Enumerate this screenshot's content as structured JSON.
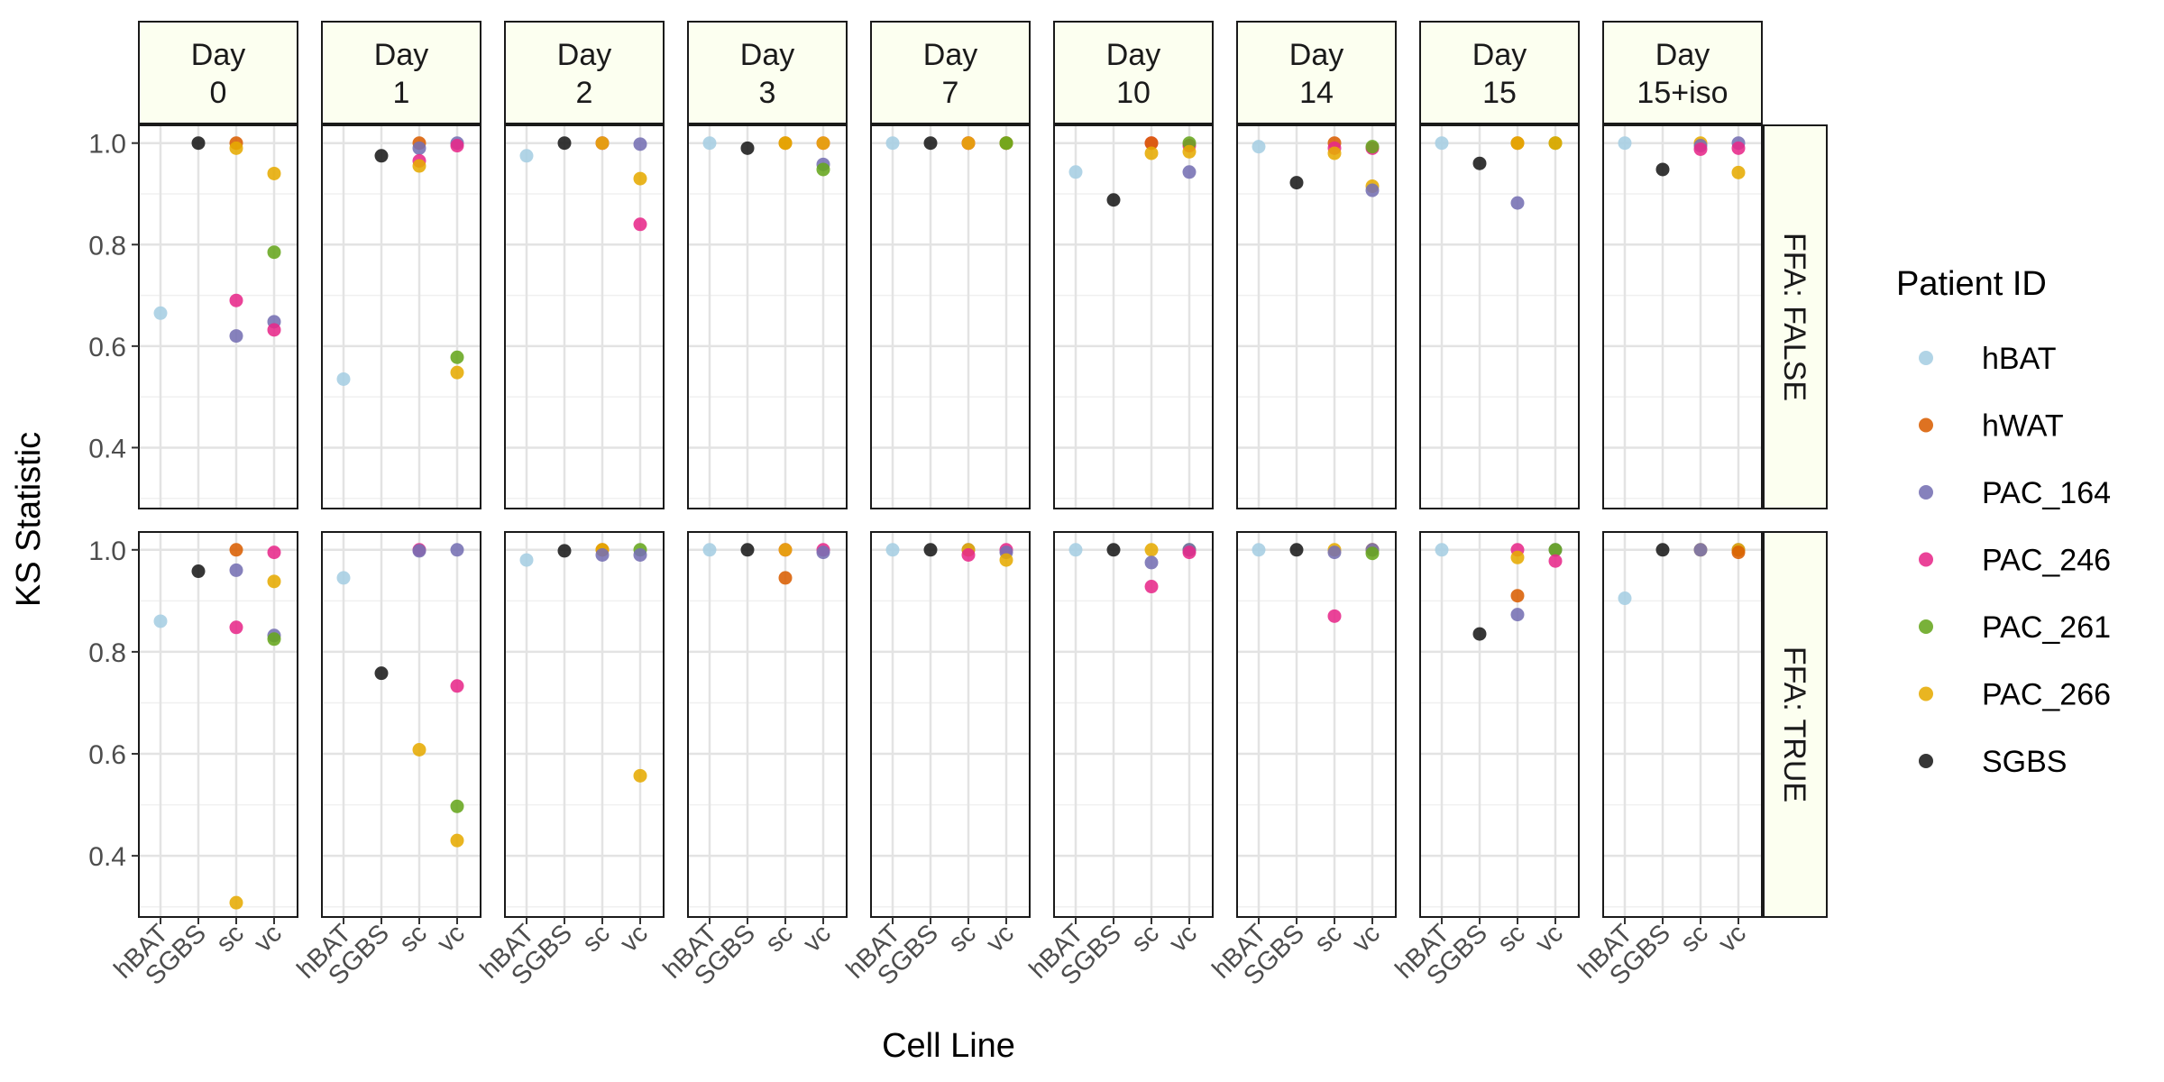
{
  "chart_data": {
    "type": "scatter",
    "xlabel": "Cell Line",
    "ylabel": "KS Statistic",
    "x_categories": [
      "hBAT",
      "SGBS",
      "sc",
      "vc"
    ],
    "y_ticks": [
      0.4,
      0.6,
      0.8,
      1.0
    ],
    "y_tick_labels": [
      "0.4",
      "0.6",
      "0.8",
      "1.0"
    ],
    "ylim": [
      0.28,
      1.035
    ],
    "grid": true,
    "legend": {
      "title": "Patient ID",
      "position": "right",
      "entries": [
        {
          "name": "hBAT",
          "color": "#a6cee3"
        },
        {
          "name": "hWAT",
          "color": "#d95f02"
        },
        {
          "name": "PAC_164",
          "color": "#7570b3"
        },
        {
          "name": "PAC_246",
          "color": "#e7298a"
        },
        {
          "name": "PAC_261",
          "color": "#66a61e"
        },
        {
          "name": "PAC_266",
          "color": "#e6ab02"
        },
        {
          "name": "SGBS",
          "color": "#1a1a1a"
        }
      ]
    },
    "columns": [
      {
        "line1": "Day",
        "line2": "0"
      },
      {
        "line1": "Day",
        "line2": "1"
      },
      {
        "line1": "Day",
        "line2": "2"
      },
      {
        "line1": "Day",
        "line2": "3"
      },
      {
        "line1": "Day",
        "line2": "7"
      },
      {
        "line1": "Day",
        "line2": "10"
      },
      {
        "line1": "Day",
        "line2": "14"
      },
      {
        "line1": "Day",
        "line2": "15"
      },
      {
        "line1": "Day",
        "line2": "15+iso"
      }
    ],
    "rows": [
      "FFA: FALSE",
      "FFA: TRUE"
    ],
    "panels": [
      [
        [
          [
            0,
            "hBAT",
            0.665
          ],
          [
            1,
            "SGBS",
            1.0
          ],
          [
            2,
            "hWAT",
            1.0
          ],
          [
            2,
            "PAC_266",
            0.99
          ],
          [
            2,
            "PAC_246",
            0.69
          ],
          [
            2,
            "PAC_164",
            0.62
          ],
          [
            3,
            "PAC_266",
            0.94
          ],
          [
            3,
            "PAC_261",
            0.785
          ],
          [
            3,
            "PAC_164",
            0.648
          ],
          [
            3,
            "PAC_246",
            0.632
          ]
        ],
        [
          [
            0,
            "hBAT",
            0.535
          ],
          [
            1,
            "SGBS",
            0.975
          ],
          [
            2,
            "hWAT",
            1.0
          ],
          [
            2,
            "PAC_164",
            0.99
          ],
          [
            2,
            "PAC_246",
            0.965
          ],
          [
            2,
            "PAC_266",
            0.955
          ],
          [
            3,
            "PAC_164",
            1.0
          ],
          [
            3,
            "PAC_246",
            0.995
          ],
          [
            3,
            "PAC_261",
            0.578
          ],
          [
            3,
            "PAC_266",
            0.548
          ]
        ],
        [
          [
            0,
            "hBAT",
            0.975
          ],
          [
            1,
            "SGBS",
            1.0
          ],
          [
            2,
            "PAC_164",
            1.0
          ],
          [
            2,
            "PAC_246",
            1.0
          ],
          [
            2,
            "PAC_266",
            1.0
          ],
          [
            3,
            "PAC_164",
            0.998
          ],
          [
            3,
            "PAC_266",
            0.93
          ],
          [
            3,
            "PAC_246",
            0.84
          ]
        ],
        [
          [
            0,
            "hBAT",
            1.0
          ],
          [
            1,
            "SGBS",
            0.99
          ],
          [
            2,
            "hWAT",
            1.0
          ],
          [
            2,
            "PAC_266",
            1.0
          ],
          [
            3,
            "PAC_246",
            1.0
          ],
          [
            3,
            "PAC_266",
            1.0
          ],
          [
            3,
            "PAC_164",
            0.958
          ],
          [
            3,
            "PAC_261",
            0.948
          ]
        ],
        [
          [
            0,
            "hBAT",
            1.0
          ],
          [
            1,
            "SGBS",
            1.0
          ],
          [
            2,
            "hWAT",
            1.0
          ],
          [
            2,
            "PAC_246",
            1.0
          ],
          [
            2,
            "PAC_266",
            1.0
          ],
          [
            3,
            "PAC_246",
            1.0
          ],
          [
            3,
            "PAC_164",
            1.0
          ],
          [
            3,
            "PAC_266",
            1.0
          ],
          [
            3,
            "PAC_261",
            1.0
          ]
        ],
        [
          [
            0,
            "hBAT",
            0.943
          ],
          [
            1,
            "SGBS",
            0.888
          ],
          [
            2,
            "PAC_246",
            1.0
          ],
          [
            2,
            "hWAT",
            1.0
          ],
          [
            2,
            "PAC_266",
            0.98
          ],
          [
            3,
            "PAC_246",
            0.995
          ],
          [
            3,
            "PAC_261",
            1.0
          ],
          [
            3,
            "PAC_266",
            0.983
          ],
          [
            3,
            "PAC_164",
            0.943
          ]
        ],
        [
          [
            0,
            "hBAT",
            0.993
          ],
          [
            1,
            "SGBS",
            0.922
          ],
          [
            2,
            "hWAT",
            1.0
          ],
          [
            2,
            "PAC_246",
            0.99
          ],
          [
            2,
            "PAC_266",
            0.98
          ],
          [
            3,
            "PAC_246",
            0.99
          ],
          [
            3,
            "PAC_261",
            0.993
          ],
          [
            3,
            "PAC_266",
            0.915
          ],
          [
            3,
            "PAC_164",
            0.907
          ]
        ],
        [
          [
            0,
            "hBAT",
            1.0
          ],
          [
            1,
            "SGBS",
            0.96
          ],
          [
            2,
            "hWAT",
            1.0
          ],
          [
            2,
            "PAC_266",
            1.0
          ],
          [
            2,
            "PAC_164",
            0.882
          ],
          [
            3,
            "PAC_261",
            1.0
          ],
          [
            3,
            "PAC_266",
            1.0
          ]
        ],
        [
          [
            0,
            "hBAT",
            1.0
          ],
          [
            1,
            "SGBS",
            0.948
          ],
          [
            2,
            "PAC_266",
            1.0
          ],
          [
            2,
            "PAC_164",
            0.995
          ],
          [
            2,
            "PAC_246",
            0.988
          ],
          [
            3,
            "PAC_164",
            1.0
          ],
          [
            3,
            "PAC_246",
            0.99
          ],
          [
            3,
            "PAC_266",
            0.942
          ]
        ]
      ],
      [
        [
          [
            0,
            "hBAT",
            0.86
          ],
          [
            1,
            "SGBS",
            0.958
          ],
          [
            2,
            "hWAT",
            1.0
          ],
          [
            2,
            "PAC_164",
            0.96
          ],
          [
            2,
            "PAC_246",
            0.848
          ],
          [
            2,
            "PAC_266",
            0.308
          ],
          [
            3,
            "PAC_246",
            0.995
          ],
          [
            3,
            "PAC_266",
            0.938
          ],
          [
            3,
            "PAC_164",
            0.832
          ],
          [
            3,
            "PAC_261",
            0.825
          ]
        ],
        [
          [
            0,
            "hBAT",
            0.945
          ],
          [
            1,
            "SGBS",
            0.758
          ],
          [
            2,
            "PAC_246",
            1.0
          ],
          [
            2,
            "PAC_164",
            0.998
          ],
          [
            2,
            "PAC_266",
            0.608
          ],
          [
            3,
            "PAC_164",
            1.0
          ],
          [
            3,
            "PAC_246",
            0.733
          ],
          [
            3,
            "PAC_261",
            0.497
          ],
          [
            3,
            "PAC_266",
            0.43
          ]
        ],
        [
          [
            0,
            "hBAT",
            0.98
          ],
          [
            1,
            "SGBS",
            0.998
          ],
          [
            2,
            "hWAT",
            1.0
          ],
          [
            2,
            "PAC_266",
            1.0
          ],
          [
            2,
            "PAC_164",
            0.99
          ],
          [
            3,
            "PAC_261",
            1.0
          ],
          [
            3,
            "PAC_164",
            0.99
          ],
          [
            3,
            "PAC_266",
            0.557
          ]
        ],
        [
          [
            0,
            "hBAT",
            1.0
          ],
          [
            1,
            "SGBS",
            1.0
          ],
          [
            2,
            "PAC_246",
            1.0
          ],
          [
            2,
            "PAC_266",
            1.0
          ],
          [
            2,
            "hWAT",
            0.945
          ],
          [
            3,
            "PAC_246",
            1.0
          ],
          [
            3,
            "PAC_164",
            0.995
          ]
        ],
        [
          [
            0,
            "hBAT",
            1.0
          ],
          [
            1,
            "SGBS",
            1.0
          ],
          [
            2,
            "PAC_164",
            1.0
          ],
          [
            2,
            "PAC_266",
            1.0
          ],
          [
            2,
            "PAC_246",
            0.99
          ],
          [
            3,
            "PAC_246",
            1.0
          ],
          [
            3,
            "PAC_164",
            0.995
          ],
          [
            3,
            "PAC_266",
            0.98
          ]
        ],
        [
          [
            0,
            "hBAT",
            1.0
          ],
          [
            1,
            "SGBS",
            1.0
          ],
          [
            2,
            "PAC_266",
            1.0
          ],
          [
            2,
            "PAC_164",
            0.975
          ],
          [
            2,
            "PAC_246",
            0.928
          ],
          [
            3,
            "PAC_261",
            1.0
          ],
          [
            3,
            "PAC_164",
            1.0
          ],
          [
            3,
            "PAC_246",
            0.995
          ]
        ],
        [
          [
            0,
            "hBAT",
            1.0
          ],
          [
            1,
            "SGBS",
            1.0
          ],
          [
            2,
            "PAC_266",
            1.0
          ],
          [
            2,
            "PAC_164",
            0.995
          ],
          [
            2,
            "PAC_246",
            0.87
          ],
          [
            3,
            "PAC_246",
            1.0
          ],
          [
            3,
            "PAC_266",
            1.0
          ],
          [
            3,
            "PAC_164",
            1.0
          ],
          [
            3,
            "PAC_261",
            0.993
          ]
        ],
        [
          [
            0,
            "hBAT",
            1.0
          ],
          [
            2,
            "PAC_246",
            1.0
          ],
          [
            2,
            "PAC_266",
            0.985
          ],
          [
            2,
            "hWAT",
            0.91
          ],
          [
            2,
            "PAC_164",
            0.873
          ],
          [
            1,
            "SGBS",
            0.835
          ],
          [
            3,
            "PAC_164",
            1.0
          ],
          [
            3,
            "PAC_261",
            1.0
          ],
          [
            3,
            "PAC_246",
            0.978
          ]
        ],
        [
          [
            0,
            "hBAT",
            0.905
          ],
          [
            1,
            "SGBS",
            1.0
          ],
          [
            2,
            "PAC_266",
            1.0
          ],
          [
            2,
            "PAC_164",
            1.0
          ],
          [
            3,
            "PAC_164",
            1.0
          ],
          [
            3,
            "PAC_266",
            1.0
          ],
          [
            3,
            "hWAT",
            0.995
          ]
        ]
      ]
    ]
  }
}
